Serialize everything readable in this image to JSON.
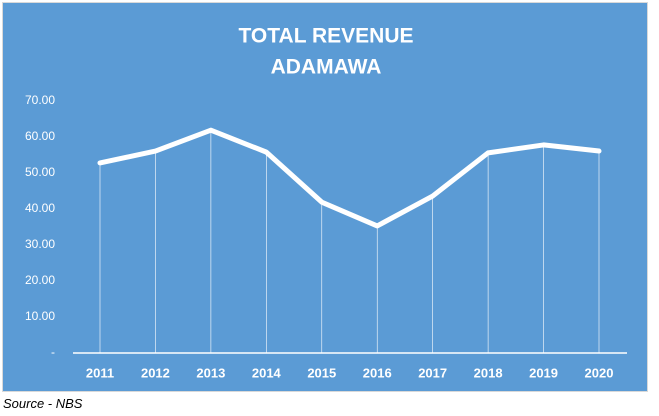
{
  "chart_data": {
    "type": "line",
    "title": "TOTAL REVENUE",
    "subtitle": "ADAMAWA",
    "source": "Source - NBS",
    "categories": [
      "2011",
      "2012",
      "2013",
      "2014",
      "2015",
      "2016",
      "2017",
      "2018",
      "2019",
      "2020"
    ],
    "values": [
      52.8,
      56.1,
      61.9,
      55.8,
      41.9,
      35.3,
      43.6,
      55.6,
      57.8,
      56.1
    ],
    "color": "#ffffff",
    "background": "#5b9bd5",
    "drop_lines": true,
    "ylim": [
      0,
      70
    ],
    "yticks": [
      {
        "value": 0,
        "label": "-"
      },
      {
        "value": 10,
        "label": "10.00"
      },
      {
        "value": 20,
        "label": "20.00"
      },
      {
        "value": 30,
        "label": "30.00"
      },
      {
        "value": 40,
        "label": "40.00"
      },
      {
        "value": 50,
        "label": "50.00"
      },
      {
        "value": 60,
        "label": "60.00"
      },
      {
        "value": 70,
        "label": "70.00"
      }
    ]
  }
}
